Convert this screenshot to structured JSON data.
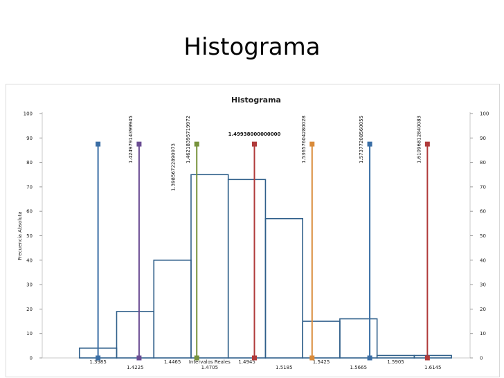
{
  "slide": {
    "title": "Histograma"
  },
  "chart_data": {
    "type": "bar",
    "title": "Histograma",
    "xlabel": "Intervalos Reales",
    "ylabel": "Frecuencia Absoluta",
    "ylim": [
      0,
      100
    ],
    "yticks": [
      0,
      10,
      20,
      30,
      40,
      50,
      60,
      70,
      80,
      90,
      100
    ],
    "xlim": [
      1.3625,
      1.6385
    ],
    "xticks": [
      "1.3985",
      "1.4225",
      "1.4465",
      "1.4705",
      "1.4945",
      "1.5185",
      "1.5425",
      "1.5665",
      "1.5905",
      "1.6145"
    ],
    "grid": false,
    "histogram": {
      "bin_edges": [
        1.3865,
        1.4105,
        1.4345,
        1.4585,
        1.4825,
        1.5065,
        1.5305,
        1.5545,
        1.5785,
        1.6025,
        1.6265
      ],
      "frequencies": [
        4,
        19,
        40,
        75,
        73,
        57,
        15,
        16,
        1,
        1
      ],
      "color": "#2f5f8a"
    },
    "reference_lines": [
      {
        "x": 1.3985,
        "label": "",
        "color": "#3a6ea5",
        "height": 87.5
      },
      {
        "x": 1.4249791439995,
        "label": "1.42497914399945",
        "color": "#6a4c93",
        "height": 87.5
      },
      {
        "x": 1.4621839571997,
        "label": "1.46218395719972",
        "color": "#77933c",
        "height": 87.5
      },
      {
        "x": 1.49938,
        "label": "1.49938000000000",
        "color": "#b03a3a",
        "height": 87.5
      },
      {
        "x": 1.5365760428003,
        "label": "1.53657604280028",
        "color": "#d98b3a",
        "height": 87.5
      },
      {
        "x": 1.5737720856006,
        "label": "1.57377208560055",
        "color": "#3a6ea5",
        "height": 87.5
      },
      {
        "x": 1.6109681284008,
        "label": "1.61096812840083",
        "color": "#b03a3a",
        "height": 87.5
      }
    ],
    "annotation": {
      "x": 1.4249,
      "label": "1.39856722890973"
    }
  }
}
